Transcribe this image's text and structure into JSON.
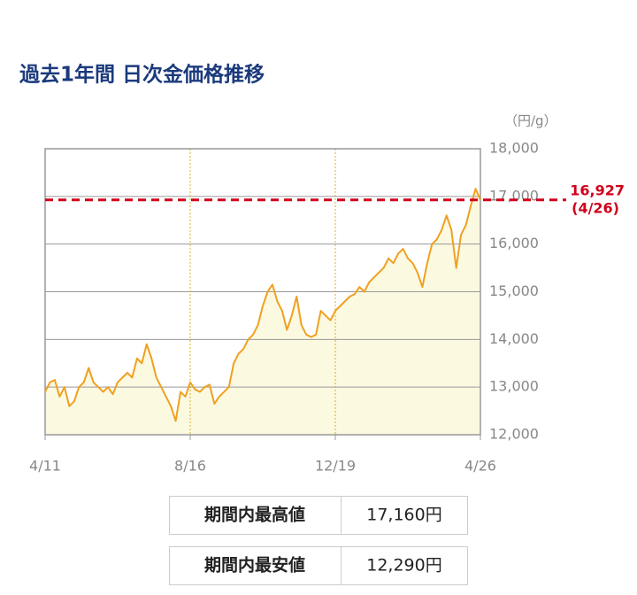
{
  "chart_data": {
    "type": "area-line",
    "title": "過去1年間 日次金価格推移",
    "unit": "（円/g）",
    "categories": [
      "4/11",
      null,
      null,
      null,
      null,
      null,
      null,
      null,
      null,
      null,
      null,
      null,
      null,
      null,
      null,
      null,
      null,
      null,
      null,
      null,
      null,
      null,
      null,
      null,
      null,
      null,
      null,
      null,
      null,
      null,
      "8/16",
      null,
      null,
      null,
      null,
      null,
      null,
      null,
      null,
      null,
      null,
      null,
      null,
      null,
      null,
      null,
      null,
      null,
      null,
      null,
      null,
      null,
      null,
      null,
      null,
      null,
      null,
      null,
      null,
      null,
      "12/19",
      null,
      null,
      null,
      null,
      null,
      null,
      null,
      null,
      null,
      null,
      null,
      null,
      null,
      null,
      null,
      null,
      null,
      null,
      null,
      null,
      null,
      null,
      null,
      null,
      null,
      null,
      null,
      null,
      null,
      "4/26"
    ],
    "values": [
      12900,
      13100,
      13150,
      12800,
      13000,
      12600,
      12700,
      13000,
      13100,
      13400,
      13100,
      13000,
      12900,
      13000,
      12850,
      13100,
      13200,
      13300,
      13200,
      13600,
      13500,
      13900,
      13600,
      13200,
      13000,
      12800,
      12600,
      12290,
      12900,
      12800,
      13100,
      12950,
      12900,
      13000,
      13050,
      12650,
      12800,
      12900,
      13000,
      13500,
      13700,
      13800,
      14000,
      14100,
      14300,
      14700,
      15000,
      15150,
      14800,
      14600,
      14200,
      14500,
      14900,
      14300,
      14100,
      14050,
      14100,
      14600,
      14500,
      14400,
      14600,
      14700,
      14800,
      14900,
      14950,
      15100,
      15000,
      15200,
      15300,
      15400,
      15500,
      15700,
      15600,
      15800,
      15900,
      15700,
      15600,
      15400,
      15100,
      15600,
      16000,
      16100,
      16300,
      16600,
      16300,
      15500,
      16200,
      16400,
      16800,
      17160,
      16927
    ],
    "color": "#f0a020",
    "fill": "#fcf9e1",
    "ylim": [
      12000,
      18000
    ],
    "yticks": [
      {
        "value": 12000,
        "label": "12,000"
      },
      {
        "value": 13000,
        "label": "13,000"
      },
      {
        "value": 14000,
        "label": "14,000"
      },
      {
        "value": 15000,
        "label": "15,000"
      },
      {
        "value": 16000,
        "label": "16,000"
      },
      {
        "value": 17000,
        "label": "17,000"
      },
      {
        "value": 18000,
        "label": "18,000"
      }
    ],
    "grid": true,
    "annotation": {
      "value": 16927,
      "label": "16,927",
      "date": "(4/26)",
      "color": "#d0021b"
    }
  },
  "table": {
    "rows": [
      [
        "期間内最高値",
        "17,160円"
      ],
      [
        "期間内最安値",
        "12,290円"
      ]
    ]
  }
}
